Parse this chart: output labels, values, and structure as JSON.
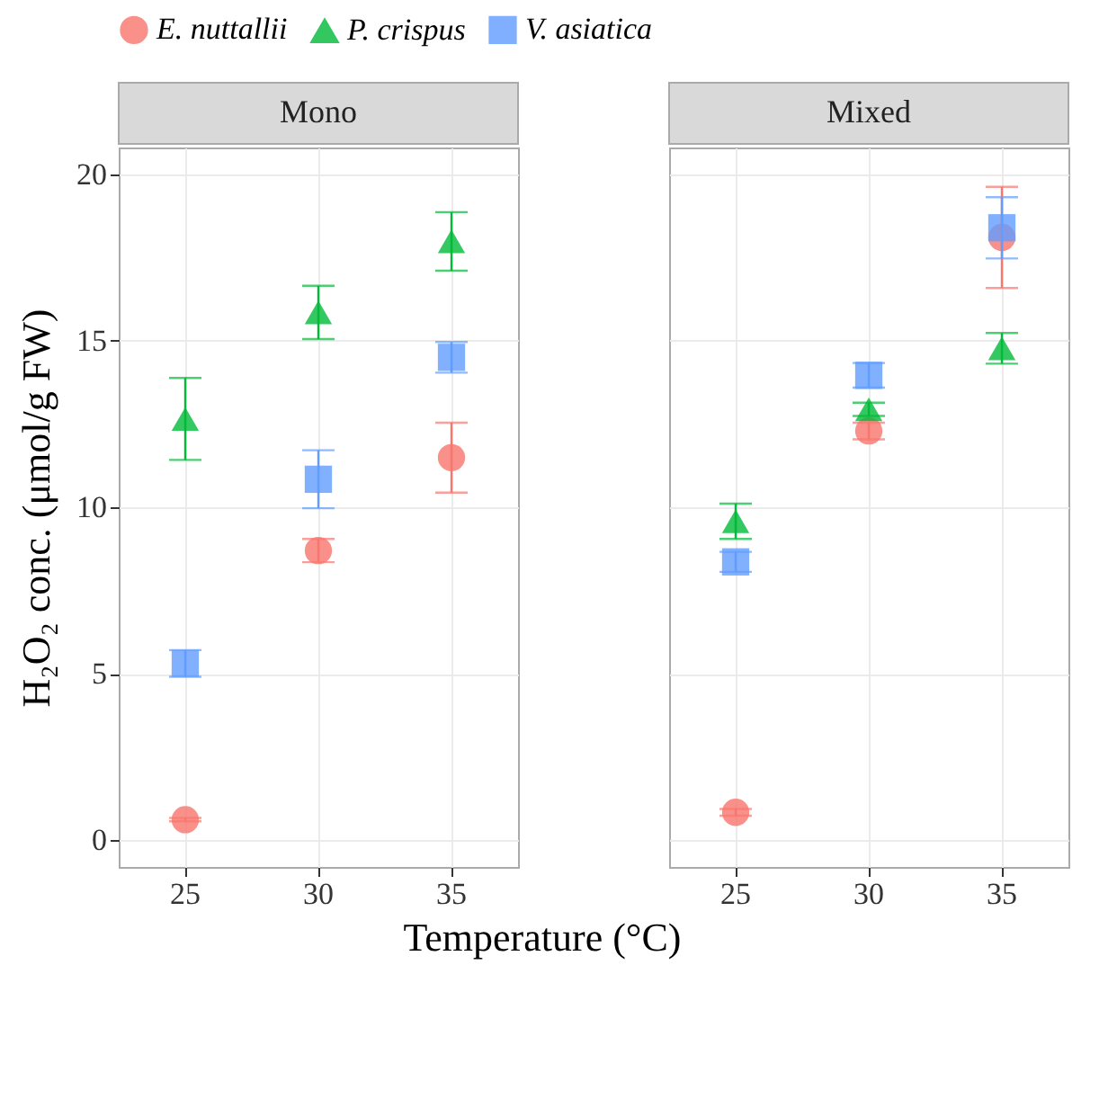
{
  "chart_data": [
    {
      "type": "scatter",
      "title": "Mono",
      "ylabel": "H₂O₂ conc. (μmol/g FW)",
      "xlabel": "Temperature (°C)",
      "categories": [
        "25",
        "30",
        "35"
      ],
      "ylim": [
        -0.8,
        20.8
      ],
      "yticks": [
        0,
        5,
        10,
        15,
        20
      ],
      "grid": true,
      "legend": "top",
      "series": [
        {
          "name": "E. nuttallii",
          "color": "#f8766d",
          "marker": "circle",
          "values": [
            0.62,
            8.7,
            11.49
          ],
          "errors": [
            0.05,
            0.35,
            1.05
          ]
        },
        {
          "name": "P. crispus",
          "color": "#00ba38",
          "marker": "triangle",
          "values": [
            12.65,
            15.85,
            17.98
          ],
          "errors": [
            1.23,
            0.8,
            0.88
          ]
        },
        {
          "name": "V. asiatica",
          "color": "#619cff",
          "marker": "square",
          "values": [
            5.31,
            10.84,
            14.5
          ],
          "errors": [
            0.4,
            0.87,
            0.46
          ]
        }
      ]
    },
    {
      "type": "scatter",
      "title": "Mixed",
      "categories": [
        "25",
        "30",
        "35"
      ],
      "ylim": [
        -0.8,
        20.8
      ],
      "yticks": [
        0,
        5,
        10,
        15,
        20
      ],
      "grid": true,
      "tick_labels": "x",
      "series": [
        {
          "color": "#f8766d",
          "marker": "circle",
          "values": [
            0.84,
            12.29,
            18.1
          ],
          "errors": [
            0.1,
            0.25,
            1.52
          ]
        },
        {
          "color": "#00ba38",
          "marker": "triangle",
          "values": [
            9.58,
            12.94,
            14.77
          ],
          "errors": [
            0.53,
            0.2,
            0.46
          ]
        },
        {
          "color": "#619cff",
          "marker": "square",
          "values": [
            8.36,
            13.96,
            18.39
          ],
          "errors": [
            0.3,
            0.37,
            0.92
          ]
        }
      ]
    }
  ]
}
